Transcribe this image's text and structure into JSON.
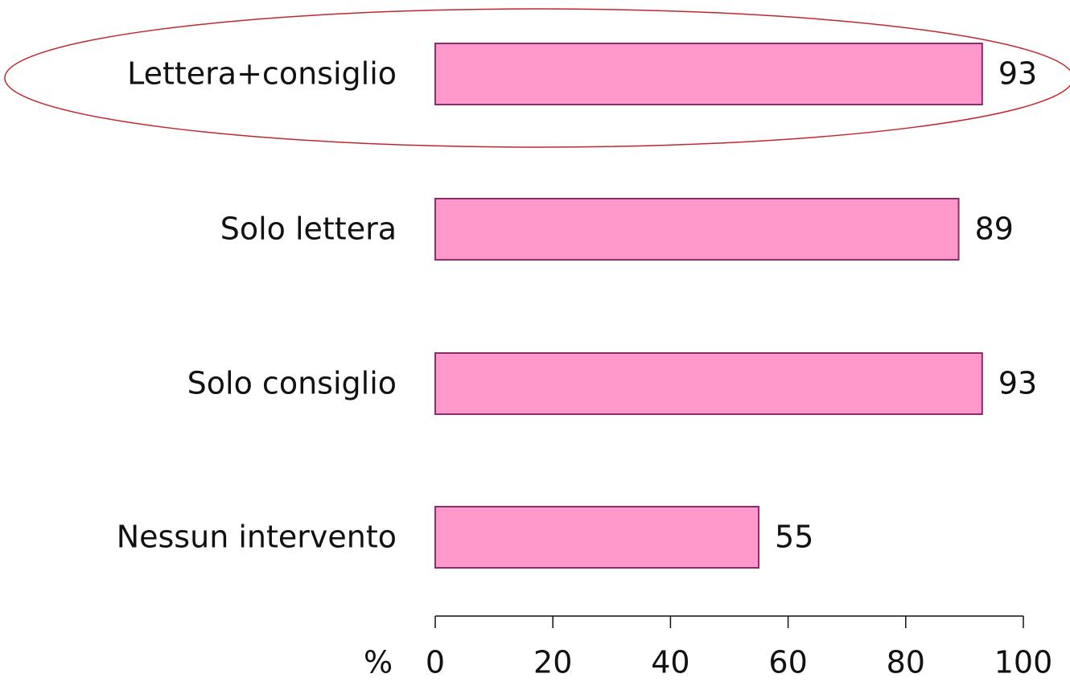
{
  "chart_data": {
    "type": "hbar",
    "categories": [
      "Lettera+consiglio",
      "Solo lettera",
      "Solo consiglio",
      "Nessun intervento"
    ],
    "values": [
      93,
      89,
      93,
      55
    ],
    "color": "#ff99cc",
    "edge_color": "#8b2d6b",
    "xlabel": "%",
    "xlim": [
      0,
      100
    ],
    "xticks": [
      0,
      20,
      40,
      60,
      80,
      100
    ]
  }
}
